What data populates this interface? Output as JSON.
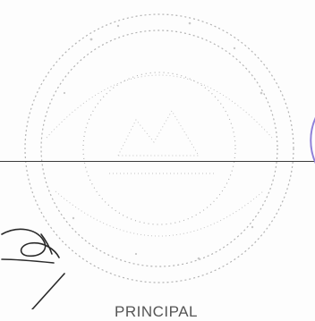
{
  "document": {
    "designation": "PRINCIPAL",
    "seal": {
      "kind": "faint circular institutional seal",
      "ink_color": "#9a9a9a"
    },
    "signature": {
      "ink_color": "#2a2a2a"
    },
    "stamp_arc": {
      "ink_color": "#8f80d8"
    },
    "rule_color": "#3a3a3a"
  }
}
